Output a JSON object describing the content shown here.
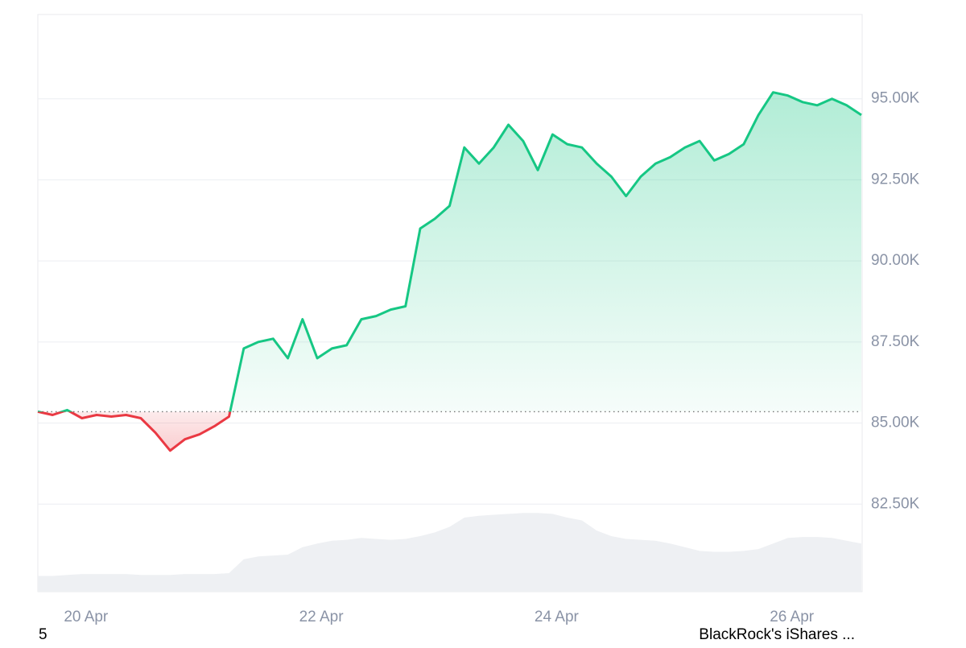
{
  "chart_data": {
    "type": "line",
    "categories": [
      null,
      null,
      null,
      "20 Apr",
      null,
      null,
      null,
      null,
      null,
      null,
      null,
      null,
      null,
      null,
      null,
      null,
      null,
      null,
      null,
      "22 Apr",
      null,
      null,
      null,
      null,
      null,
      null,
      null,
      null,
      null,
      null,
      null,
      null,
      null,
      null,
      null,
      "24 Apr",
      null,
      null,
      null,
      null,
      null,
      null,
      null,
      null,
      null,
      null,
      null,
      null,
      null,
      null,
      null,
      "26 Apr",
      null,
      null,
      null,
      null,
      null
    ],
    "values": [
      85350,
      85250,
      85400,
      85150,
      85250,
      85200,
      85250,
      85150,
      84700,
      84150,
      84500,
      84650,
      84900,
      85200,
      87300,
      87500,
      87600,
      87000,
      88200,
      87000,
      87300,
      87400,
      88200,
      88300,
      88500,
      88600,
      91000,
      91300,
      91700,
      93500,
      93000,
      93500,
      94200,
      93700,
      92800,
      93900,
      93600,
      93500,
      93000,
      92600,
      92000,
      92600,
      93000,
      93200,
      93500,
      93700,
      93100,
      93300,
      93600,
      94500,
      95200,
      95100,
      94900,
      94800,
      95000,
      94800,
      94500
    ],
    "baseline": 85350,
    "up_color": "#16c784",
    "down_color": "#ea3943",
    "ylim": [
      79800,
      97600
    ],
    "yticks": [
      {
        "value": 82500,
        "label": "82.50K"
      },
      {
        "value": 85000,
        "label": "85.00K"
      },
      {
        "value": 87500,
        "label": "87.50K"
      },
      {
        "value": 90000,
        "label": "90.00K"
      },
      {
        "value": 92500,
        "label": "92.50K"
      },
      {
        "value": 95000,
        "label": "95.00K"
      }
    ],
    "grid": true,
    "volume": {
      "color": "#eef0f3",
      "y2lim": [
        0,
        100
      ],
      "values": [
        17,
        17,
        18,
        19,
        19,
        19,
        19,
        18,
        18,
        18,
        19,
        19,
        19,
        20,
        35,
        38,
        39,
        40,
        48,
        52,
        55,
        56,
        58,
        57,
        56,
        57,
        60,
        64,
        70,
        80,
        82,
        83,
        84,
        85,
        85,
        84,
        80,
        77,
        66,
        60,
        57,
        56,
        55,
        52,
        48,
        44,
        43,
        43,
        44,
        46,
        52,
        58,
        59,
        59,
        58,
        55,
        52
      ]
    },
    "footer_left": "5",
    "footer_right": "BlackRock's iShares ..."
  }
}
